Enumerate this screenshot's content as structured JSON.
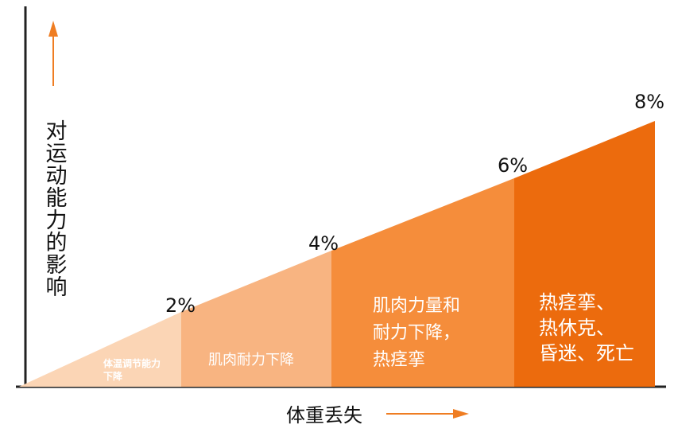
{
  "axes": {
    "y_label": "对运动能力的影响",
    "x_label": "体重丢失"
  },
  "stages": [
    {
      "percent": "2%",
      "effect": [
        "体温调节能力",
        "下降"
      ],
      "color": "#fbd5b5",
      "text_color": "#ef7d22"
    },
    {
      "percent": "4%",
      "effect": [
        "肌肉耐力下降"
      ],
      "color": "#f8b481",
      "text_color": "#ffffff"
    },
    {
      "percent": "6%",
      "effect": [
        "肌肉力量和",
        "耐力下降，",
        "热痉挛"
      ],
      "color": "#f58d3b",
      "text_color": "#ffffff"
    },
    {
      "percent": "8%",
      "effect": [
        "热痉挛、",
        "热休克、",
        "昏迷、死亡"
      ],
      "color": "#ec6b0d",
      "text_color": "#ffffff"
    }
  ],
  "colors": {
    "arrow": "#ef7d22",
    "axis": "#222222"
  }
}
